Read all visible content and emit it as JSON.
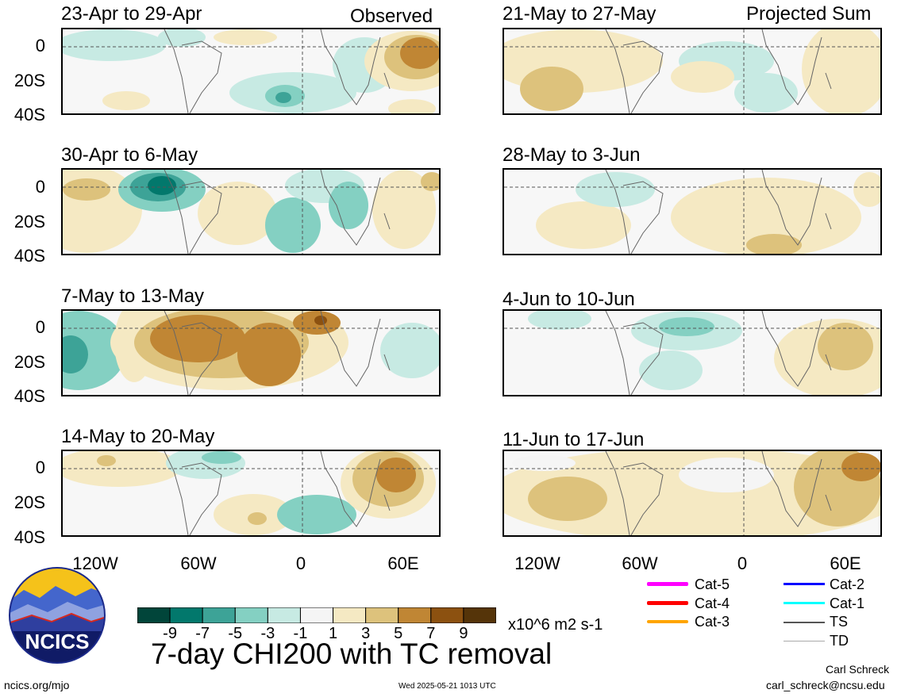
{
  "panels": [
    {
      "id": "p1",
      "title": "23-Apr to 29-Apr",
      "tag": "Observed"
    },
    {
      "id": "p2",
      "title": "30-Apr to 6-May",
      "tag": ""
    },
    {
      "id": "p3",
      "title": "7-May to 13-May",
      "tag": ""
    },
    {
      "id": "p4",
      "title": "14-May to 20-May",
      "tag": ""
    },
    {
      "id": "p5",
      "title": "21-May to 27-May",
      "tag": "Projected Sum"
    },
    {
      "id": "p6",
      "title": "28-May to 3-Jun",
      "tag": ""
    },
    {
      "id": "p7",
      "title": "4-Jun to 10-Jun",
      "tag": ""
    },
    {
      "id": "p8",
      "title": "11-Jun to 17-Jun",
      "tag": ""
    }
  ],
  "yaxis": {
    "labels": [
      "0",
      "20S",
      "40S"
    ]
  },
  "xaxis": {
    "labels": [
      "120W",
      "60W",
      "0",
      "60E"
    ]
  },
  "colorbar": {
    "colors": [
      "#01453a",
      "#02786c",
      "#3da397",
      "#84d0c2",
      "#c7eae3",
      "#f5f5f5",
      "#f5e9c3",
      "#ddc27c",
      "#c08634",
      "#8c5110",
      "#553409"
    ],
    "ticks": [
      "-9",
      "-7",
      "-5",
      "-3",
      "-1",
      "1",
      "3",
      "5",
      "7",
      "9"
    ],
    "units": "x10^6 m2 s-1"
  },
  "legend": [
    {
      "label": "Cat-5",
      "color": "#ff00ff"
    },
    {
      "label": "Cat-4",
      "color": "#ff0000"
    },
    {
      "label": "Cat-3",
      "color": "#ffa500"
    },
    {
      "label": "Cat-2",
      "color": "#0000ff"
    },
    {
      "label": "Cat-1",
      "color": "#00ffff"
    },
    {
      "label": "TS",
      "color": "#555555"
    },
    {
      "label": "TD",
      "color": "#aaaaaa"
    }
  ],
  "logo_text": "NCICS",
  "main_title": "7-day CHI200 with TC removal",
  "footer": {
    "left": "ncics.org/mjo",
    "center": "Wed 2025-05-21 1013 UTC",
    "author": "Carl Schreck",
    "email": "carl_schreck@ncsu.edu"
  }
}
